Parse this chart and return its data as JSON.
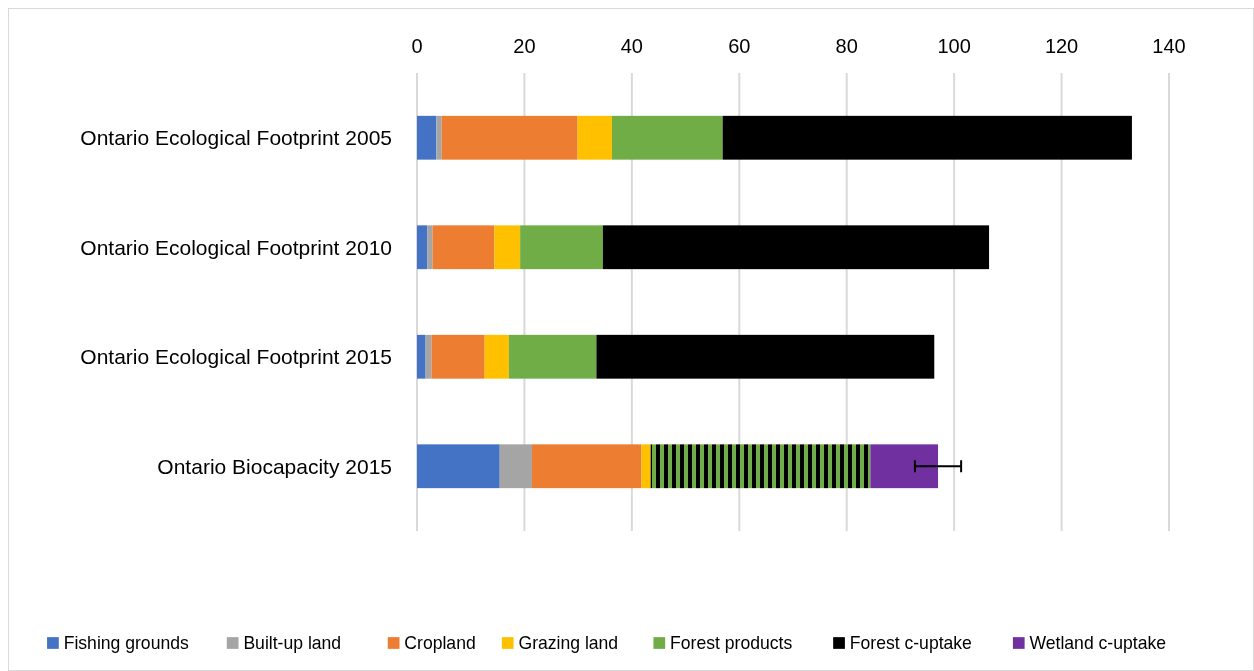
{
  "chart_data": {
    "type": "bar",
    "orientation": "horizontal",
    "stacked": true,
    "categories": [
      "Ontario Ecological Footprint 2005",
      "Ontario Ecological Footprint 2010",
      "Ontario Ecological Footprint 2015",
      "Ontario Biocapacity 2015"
    ],
    "series": [
      {
        "name": "Fishing grounds",
        "color": "#4472c4",
        "values": [
          3.6,
          1.9,
          1.6,
          15.4
        ]
      },
      {
        "name": "Built-up land",
        "color": "#a5a5a5",
        "values": [
          1.0,
          1.0,
          1.1,
          6.0
        ]
      },
      {
        "name": "Cropland",
        "color": "#ed7d31",
        "values": [
          25.3,
          11.5,
          9.9,
          20.4
        ]
      },
      {
        "name": "Grazing land",
        "color": "#ffc000",
        "values": [
          6.4,
          4.8,
          4.5,
          1.7
        ]
      },
      {
        "name": "Forest products",
        "color": "#70ad47",
        "values": [
          20.6,
          15.4,
          16.3,
          null
        ]
      },
      {
        "name": "Forest c-uptake",
        "color": "#000000",
        "values": [
          76.2,
          71.9,
          62.9,
          null
        ]
      },
      {
        "color": "#70ad47",
        "values": [
          null,
          null,
          null,
          40.9
        ]
      },
      {
        "name": "Wetland c-uptake",
        "color": "#7030a0",
        "values": [
          null,
          null,
          null,
          12.6
        ],
        "errors": [
          null,
          null,
          null,
          4.3
        ]
      }
    ],
    "xlim": [
      0,
      140
    ],
    "xticks": [
      0,
      20,
      40,
      60,
      80,
      100,
      120,
      140
    ],
    "grid": "x",
    "legend": "bottom"
  }
}
